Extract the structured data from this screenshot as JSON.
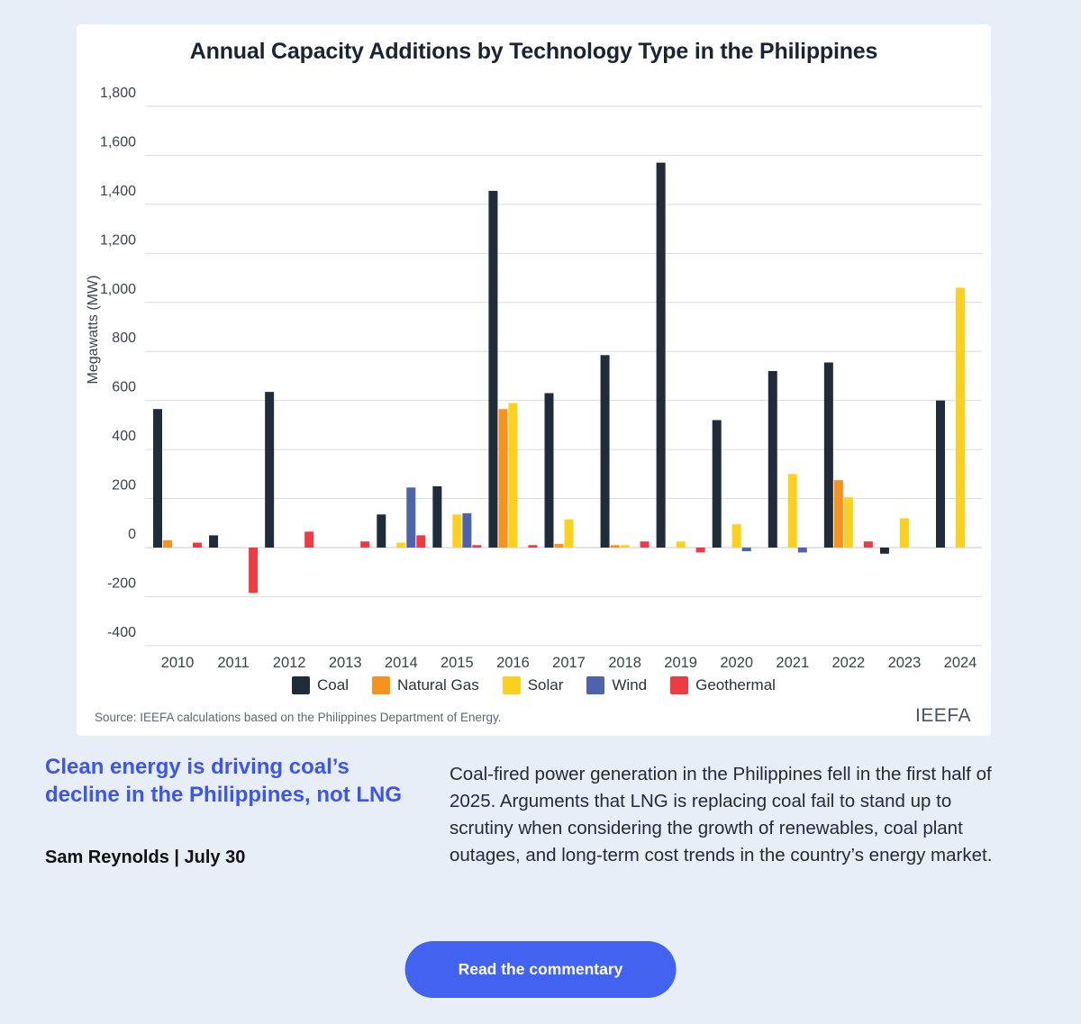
{
  "chart_data": {
    "type": "bar",
    "title": "Annual Capacity Additions by Technology Type in the Philippines",
    "ylabel": "Megawatts (MW)",
    "xlabel": "",
    "ylim": [
      -400,
      1800
    ],
    "ytick_step": 200,
    "grid": true,
    "legend_position": "bottom",
    "categories": [
      "2010",
      "2011",
      "2012",
      "2013",
      "2014",
      "2015",
      "2016",
      "2017",
      "2018",
      "2019",
      "2020",
      "2021",
      "2022",
      "2023",
      "2024"
    ],
    "series": [
      {
        "name": "Coal",
        "color": "#212c3b",
        "values": [
          565,
          50,
          635,
          0,
          135,
          250,
          1455,
          630,
          785,
          1570,
          520,
          720,
          755,
          -25,
          600
        ]
      },
      {
        "name": "Natural Gas",
        "color": "#f6921e",
        "values": [
          30,
          0,
          0,
          0,
          0,
          0,
          565,
          15,
          10,
          0,
          0,
          0,
          275,
          0,
          0
        ]
      },
      {
        "name": "Solar",
        "color": "#fdd01f",
        "values": [
          0,
          0,
          0,
          0,
          20,
          135,
          590,
          115,
          10,
          25,
          95,
          300,
          205,
          120,
          1060
        ]
      },
      {
        "name": "Wind",
        "color": "#4e63ad",
        "values": [
          0,
          0,
          0,
          0,
          245,
          140,
          0,
          0,
          0,
          0,
          -15,
          -20,
          0,
          0,
          0
        ]
      },
      {
        "name": "Geothermal",
        "color": "#ee3a41",
        "values": [
          20,
          -185,
          65,
          25,
          50,
          10,
          10,
          0,
          25,
          -20,
          0,
          0,
          25,
          0,
          0
        ]
      }
    ],
    "source": "Source: IEEFA calculations based on the Philippines Department of Energy.",
    "logo_text": "IEEFA"
  },
  "article": {
    "headline": "Clean energy is driving coal’s decline in the Philippines, not LNG",
    "byline": "Sam Reynolds | July 30",
    "summary": "Coal-fired power generation in the Philippines fell in the first half of 2025. Arguments that LNG is replacing coal fail to stand up to scrutiny when considering the growth of renewables, coal plant outages, and long-term cost trends in the country’s energy market.",
    "cta_label": "Read the commentary"
  }
}
